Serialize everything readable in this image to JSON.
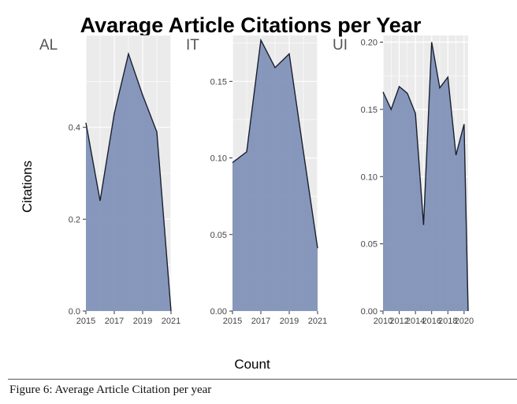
{
  "caption": "Figure 6: Average Article Citation per year",
  "colors": {
    "fill": "#8192b8",
    "line": "#1b1f2e",
    "panel_bg": "#ebebeb",
    "grid": "#ffffff",
    "text": "#444444"
  },
  "chart_data": {
    "type": "area",
    "title": "Avarage Article Citations per Year",
    "xlabel": "Count",
    "ylabel": "Citations",
    "grid": true,
    "panels": [
      {
        "name": "AL",
        "x": [
          2015,
          2016,
          2017,
          2018,
          2019,
          2020,
          2021
        ],
        "values": [
          0.41,
          0.24,
          0.43,
          0.56,
          0.47,
          0.39,
          0.0
        ],
        "xlim": [
          2015,
          2021
        ],
        "ylim": [
          0,
          0.6
        ],
        "yticks": [
          0.0,
          0.2,
          0.4
        ],
        "ytick_labels": [
          "0.0",
          "0.2",
          "0.4"
        ],
        "xticks": [
          2015,
          2017,
          2019,
          2021
        ],
        "xtick_labels": [
          "2015",
          "2017",
          "2019",
          "2021"
        ]
      },
      {
        "name": "IT",
        "x": [
          2015,
          2016,
          2017,
          2018,
          2019,
          2020,
          2021
        ],
        "values": [
          0.097,
          0.104,
          0.177,
          0.159,
          0.168,
          0.104,
          0.041
        ],
        "xlim": [
          2015,
          2021
        ],
        "ylim": [
          0,
          0.18
        ],
        "yticks": [
          0.0,
          0.05,
          0.1,
          0.15
        ],
        "ytick_labels": [
          "0.00",
          "0.05",
          "0.10",
          "0.15"
        ],
        "xticks": [
          2015,
          2017,
          2019,
          2021
        ],
        "xtick_labels": [
          "2015",
          "2017",
          "2019",
          "2021"
        ]
      },
      {
        "name": "UI",
        "x": [
          2010,
          2011,
          2012,
          2013,
          2014,
          2015,
          2016,
          2017,
          2018,
          2019,
          2020
        ],
        "values": [
          0.163,
          0.15,
          0.167,
          0.162,
          0.147,
          0.064,
          0.2,
          0.166,
          0.174,
          0.116,
          0.139
        ],
        "values_end": 0.0,
        "xlim": [
          2010,
          2020.5
        ],
        "ylim": [
          0,
          0.205
        ],
        "yticks": [
          0.0,
          0.05,
          0.1,
          0.15,
          0.2
        ],
        "ytick_labels": [
          "0.00",
          "0.05",
          "0.10",
          "0.15",
          "0.20"
        ],
        "xticks": [
          2010,
          2012,
          2014,
          2016,
          2018,
          2020
        ],
        "xtick_labels": [
          "2010",
          "2012",
          "2014",
          "2016",
          "2018",
          "2020"
        ]
      }
    ]
  }
}
